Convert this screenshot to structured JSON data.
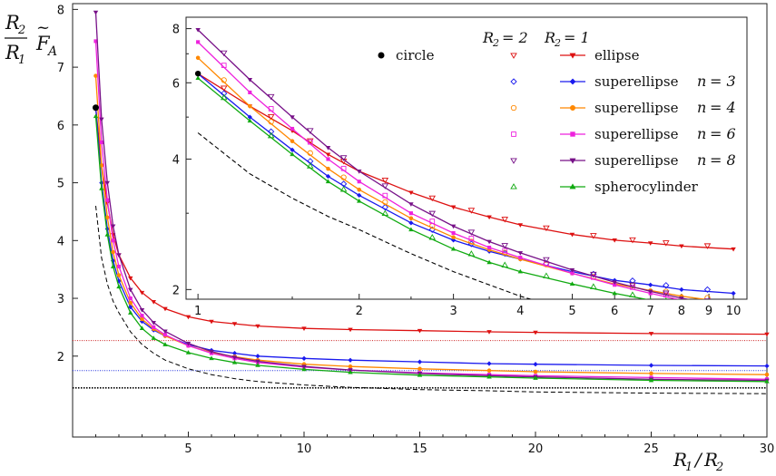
{
  "chart_data": {
    "type": "line",
    "title": "",
    "xlabel": "R1/R2",
    "ylabel": "(R2/R1) F~_A",
    "main": {
      "xlim": [
        0,
        30
      ],
      "ylim": [
        0.6,
        8.1
      ],
      "xticks": [
        5,
        10,
        15,
        20,
        25,
        30
      ],
      "yticks": [
        2,
        3,
        4,
        5,
        6,
        7,
        8
      ],
      "circle_point": {
        "x": 1,
        "y": 6.3
      },
      "asymptotes": [
        {
          "name": "ellipse",
          "y": 2.27,
          "color": "#cc2222"
        },
        {
          "name": "superellipse n=3",
          "y": 1.75,
          "color": "#2233dd"
        },
        {
          "name": "spherocylinder",
          "y": 1.45,
          "color": "#000000"
        }
      ],
      "x": [
        1,
        1.25,
        1.5,
        1.75,
        2,
        2.5,
        3,
        3.5,
        4,
        5,
        6,
        7,
        8,
        10,
        12,
        15,
        18,
        20,
        25,
        30
      ],
      "series": [
        {
          "name": "ellipse",
          "color": "#dd1111",
          "marker": "triangle-down",
          "values": [
            6.3,
            5.3,
            4.65,
            4.1,
            3.75,
            3.35,
            3.1,
            2.94,
            2.82,
            2.68,
            2.6,
            2.56,
            2.52,
            2.48,
            2.46,
            2.44,
            2.42,
            2.41,
            2.39,
            2.38
          ]
        },
        {
          "name": "superellipse n = 3",
          "color": "#1a1aee",
          "marker": "diamond",
          "values": [
            6.3,
            5.0,
            4.2,
            3.65,
            3.3,
            2.85,
            2.6,
            2.45,
            2.35,
            2.2,
            2.1,
            2.05,
            2.0,
            1.96,
            1.93,
            1.9,
            1.87,
            1.86,
            1.84,
            1.83
          ]
        },
        {
          "name": "superellipse n = 4",
          "color": "#ff8800",
          "marker": "circle",
          "values": [
            6.85,
            5.3,
            4.4,
            3.8,
            3.4,
            2.92,
            2.64,
            2.47,
            2.35,
            2.18,
            2.06,
            1.99,
            1.93,
            1.86,
            1.82,
            1.78,
            1.75,
            1.73,
            1.7,
            1.68
          ]
        },
        {
          "name": "superellipse n = 6",
          "color": "#ee22dd",
          "marker": "square",
          "values": [
            7.45,
            5.7,
            4.7,
            4.0,
            3.55,
            3.0,
            2.7,
            2.5,
            2.37,
            2.18,
            2.05,
            1.96,
            1.89,
            1.81,
            1.76,
            1.71,
            1.68,
            1.66,
            1.63,
            1.6
          ]
        },
        {
          "name": "superellipse n = 8",
          "color": "#771188",
          "marker": "triangle-down",
          "values": [
            7.95,
            6.1,
            5.0,
            4.25,
            3.75,
            3.15,
            2.8,
            2.58,
            2.43,
            2.22,
            2.08,
            1.98,
            1.91,
            1.82,
            1.76,
            1.7,
            1.66,
            1.64,
            1.6,
            1.58
          ]
        },
        {
          "name": "spherocylinder",
          "color": "#11aa11",
          "marker": "triangle-up",
          "values": [
            6.15,
            4.9,
            4.1,
            3.55,
            3.2,
            2.75,
            2.48,
            2.31,
            2.2,
            2.06,
            1.96,
            1.89,
            1.84,
            1.77,
            1.72,
            1.67,
            1.64,
            1.62,
            1.58,
            1.56
          ]
        },
        {
          "name": "reference (dashed)",
          "color": "#000000",
          "marker": "none",
          "values": [
            4.6,
            3.7,
            3.25,
            2.95,
            2.75,
            2.42,
            2.2,
            2.05,
            1.93,
            1.78,
            1.68,
            1.61,
            1.56,
            1.5,
            1.46,
            1.42,
            1.4,
            1.38,
            1.36,
            1.35
          ]
        }
      ]
    },
    "inset": {
      "scale": "log-log",
      "xlim": [
        0.95,
        10.6
      ],
      "ylim": [
        1.9,
        8.5
      ],
      "xticks": [
        1,
        2,
        3,
        4,
        5,
        6,
        7,
        8,
        9,
        10
      ],
      "yticks": [
        2,
        4,
        6,
        8
      ]
    },
    "legend": {
      "header_open": "R2 = 2",
      "header_filled": "R2 = 1",
      "circle_label": "circle",
      "entries": [
        {
          "label": "ellipse",
          "n": ""
        },
        {
          "label": "superellipse",
          "n": "n = 3"
        },
        {
          "label": "superellipse",
          "n": "n = 4"
        },
        {
          "label": "superellipse",
          "n": "n = 6"
        },
        {
          "label": "superellipse",
          "n": "n = 8"
        },
        {
          "label": "spherocylinder",
          "n": ""
        }
      ]
    }
  }
}
